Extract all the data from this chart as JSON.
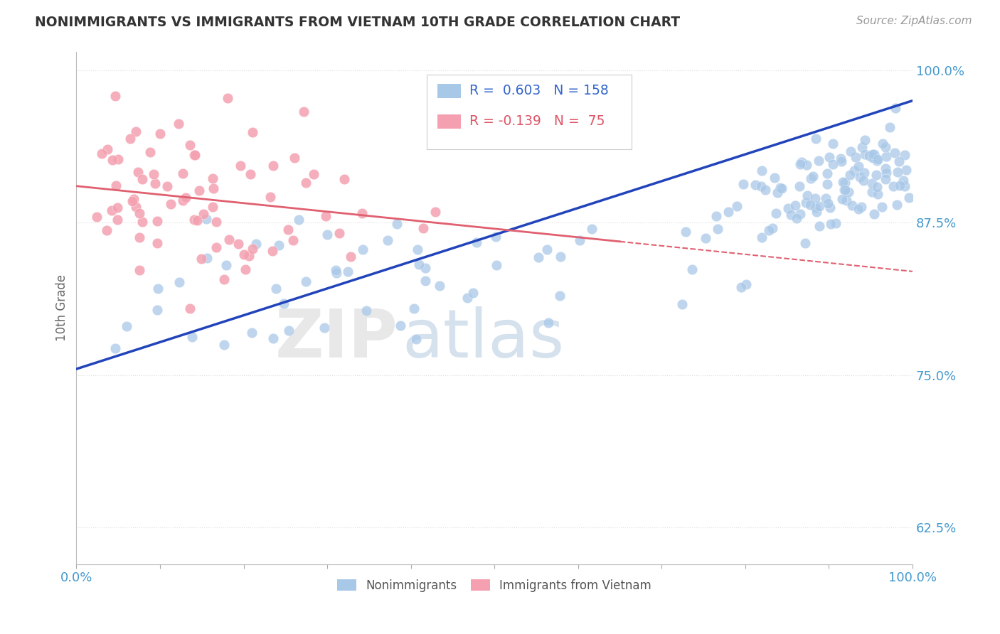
{
  "title": "NONIMMIGRANTS VS IMMIGRANTS FROM VIETNAM 10TH GRADE CORRELATION CHART",
  "source": "Source: ZipAtlas.com",
  "ylabel": "10th Grade",
  "xlim": [
    0.0,
    1.0
  ],
  "ylim": [
    0.595,
    1.015
  ],
  "yticks": [
    0.625,
    0.75,
    0.875,
    1.0
  ],
  "ytick_labels": [
    "62.5%",
    "75.0%",
    "87.5%",
    "100.0%"
  ],
  "R_blue": 0.603,
  "N_blue": 158,
  "R_pink": -0.139,
  "N_pink": 75,
  "blue_color": "#A8C8E8",
  "pink_color": "#F4A0B0",
  "blue_line_color": "#2244BB",
  "pink_line_color": "#E06070",
  "background_color": "#FFFFFF",
  "grid_color": "#DDDDDD",
  "title_color": "#333333",
  "axis_label_color": "#4499CC",
  "legend_text_color_blue": "#3366CC",
  "legend_text_color_pink": "#DD5566",
  "blue_line_start_y": 0.755,
  "blue_line_end_y": 0.975,
  "pink_line_start_y": 0.905,
  "pink_line_end_y": 0.835
}
